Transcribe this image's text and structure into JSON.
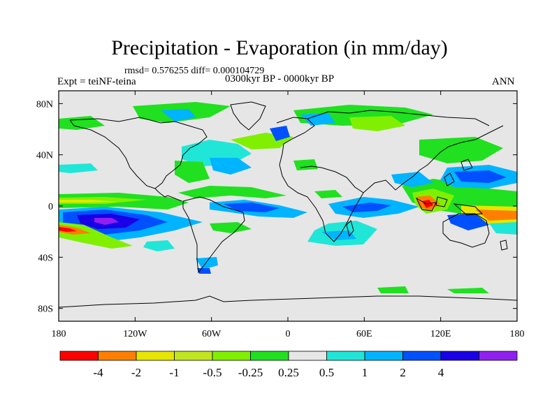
{
  "title": "Precipitation - Evaporation (in mm/day)",
  "stats": "rmsd= 0.576255 diff= 0.000104729",
  "left_label": "Expt = teiNF-teina",
  "center_label": "0300kyr BP - 0000kyr BP",
  "right_label": "ANN",
  "map": {
    "lon_range": [
      -180,
      180
    ],
    "lat_range": [
      -90,
      90
    ],
    "lon_ticks": [
      {
        "value": -180,
        "label": "180"
      },
      {
        "value": -120,
        "label": "120W"
      },
      {
        "value": -60,
        "label": "60W"
      },
      {
        "value": 0,
        "label": "0"
      },
      {
        "value": 60,
        "label": "60E"
      },
      {
        "value": 120,
        "label": "120E"
      },
      {
        "value": 180,
        "label": "180"
      }
    ],
    "lat_ticks": [
      {
        "value": 80,
        "label": "80N"
      },
      {
        "value": 40,
        "label": "40N"
      },
      {
        "value": 0,
        "label": "0"
      },
      {
        "value": -40,
        "label": "40S"
      },
      {
        "value": -80,
        "label": "80S"
      }
    ],
    "land_color": "#000000",
    "background_color": "#e6e6e6"
  },
  "colorbar": {
    "colors": [
      "#ff0000",
      "#ff8000",
      "#e6e600",
      "#c0e620",
      "#80f000",
      "#20e020",
      "#e6e6e6",
      "#20e6d8",
      "#00b4ff",
      "#0050ff",
      "#1a00e6",
      "#9020f0"
    ],
    "labels": [
      "-4",
      "-2",
      "-1",
      "-0.5",
      "-0.25",
      "0.25",
      "0.5",
      "1",
      "2",
      "4"
    ]
  },
  "chart_data": {
    "type": "heatmap",
    "title": "Precipitation - Evaporation (in mm/day)",
    "subtitle": "0300kyr BP - 0000kyr BP",
    "contour_levels": [
      -4,
      -2,
      -1,
      -0.5,
      -0.25,
      0.25,
      0.5,
      1,
      2,
      4
    ],
    "x_range": [
      -180,
      180
    ],
    "y_range": [
      -90,
      90
    ]
  }
}
